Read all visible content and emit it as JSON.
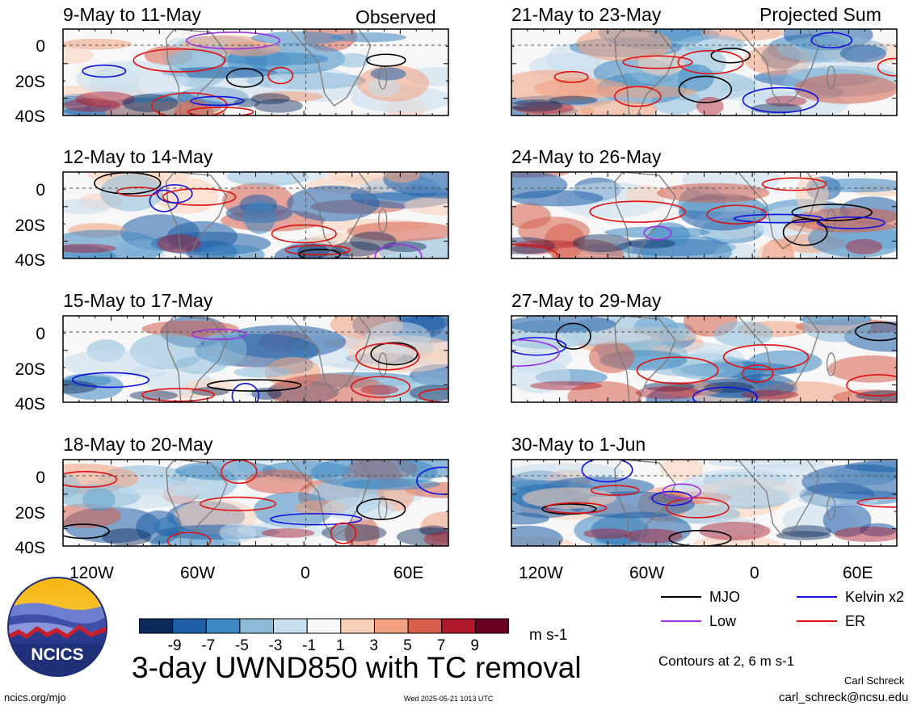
{
  "panels": [
    {
      "title": "9-May to 11-May",
      "tag": "Observed"
    },
    {
      "title": "21-May to 23-May",
      "tag": "Projected Sum"
    },
    {
      "title": "12-May to 14-May",
      "tag": ""
    },
    {
      "title": "24-May to 26-May",
      "tag": ""
    },
    {
      "title": "15-May to 17-May",
      "tag": ""
    },
    {
      "title": "27-May to 29-May",
      "tag": ""
    },
    {
      "title": "18-May to 20-May",
      "tag": ""
    },
    {
      "title": "30-May to 1-Jun",
      "tag": ""
    }
  ],
  "lat_labels": [
    "0",
    "20S",
    "40S"
  ],
  "lon_labels": [
    "120W",
    "60W",
    "0",
    "60E"
  ],
  "legend": {
    "mjo": {
      "label": "MJO",
      "color": "#000000"
    },
    "kelvin": {
      "label": "Kelvin x2",
      "color": "#1010e0"
    },
    "low": {
      "label": "Low",
      "color": "#a030e0"
    },
    "er": {
      "label": "ER",
      "color": "#e01010"
    }
  },
  "colorbar": {
    "labels": [
      "-9",
      "-7",
      "-5",
      "-3",
      "-1",
      "1",
      "3",
      "5",
      "7",
      "9"
    ],
    "colors": [
      "#0b2a5c",
      "#1f5fa8",
      "#3e88c2",
      "#8bbbd9",
      "#c8dfee",
      "#f7f7f7",
      "#fbd0b8",
      "#f2a07f",
      "#d6604d",
      "#b0182b",
      "#67001f"
    ],
    "units": "m s-1"
  },
  "main_title": "3-day UWND850 with TC removal",
  "contours_note": "Contours at 2, 6 m s-1",
  "logo_text": "NCICS",
  "footer": {
    "url": "ncics.org/mjo",
    "timestamp": "Wed 2025-05-21 1013 UTC",
    "author": "Carl Schreck",
    "email": "carl_schreck@ncsu.edu"
  }
}
